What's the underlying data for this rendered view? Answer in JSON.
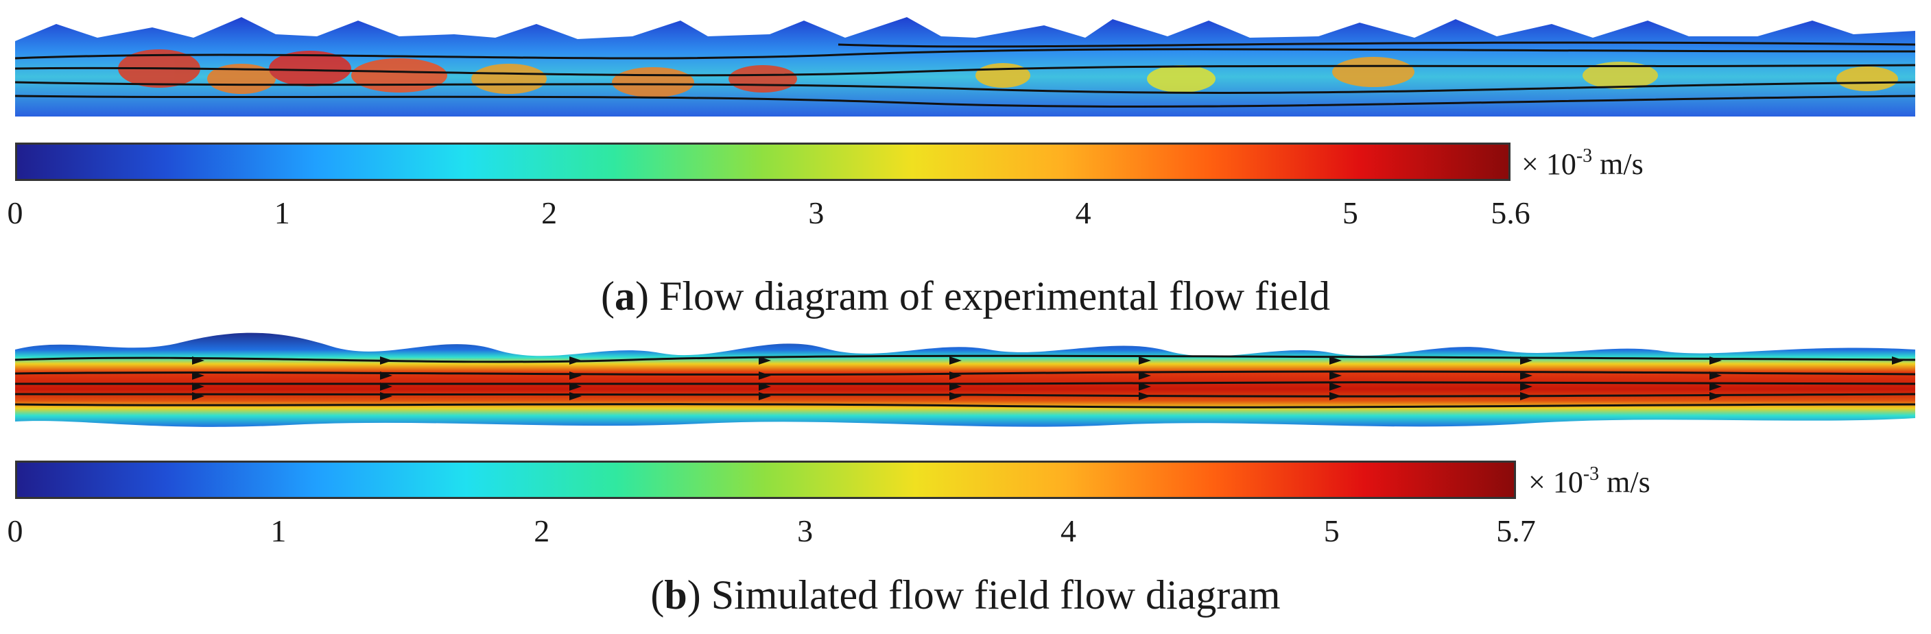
{
  "figure_a": {
    "colorbar": {
      "min_label": "0",
      "max_label": "5.6",
      "ticks": [
        "0",
        "1",
        "2",
        "3",
        "4",
        "5",
        "5.6"
      ],
      "tick_values": [
        0,
        1,
        2,
        3,
        4,
        5,
        5.6
      ],
      "max_value": 5.6
    },
    "unit": {
      "prefix": "× 10",
      "exp": "-3",
      "suffix": " m/s"
    },
    "caption": {
      "letter": "a",
      "text": " Flow diagram of experimental flow field"
    }
  },
  "figure_b": {
    "colorbar": {
      "min_label": "0",
      "max_label": "5.7",
      "ticks": [
        "0",
        "1",
        "2",
        "3",
        "4",
        "5",
        "5.7"
      ],
      "tick_values": [
        0,
        1,
        2,
        3,
        4,
        5,
        5.7
      ],
      "max_value": 5.7
    },
    "unit": {
      "prefix": "× 10",
      "exp": "-3",
      "suffix": " m/s"
    },
    "caption": {
      "letter": "b",
      "text": " Simulated flow field flow diagram"
    }
  },
  "colormap": [
    "#1f1f8f",
    "#1f4fd6",
    "#20a0ff",
    "#20e0f0",
    "#30e8a0",
    "#90e040",
    "#f0e020",
    "#ffb020",
    "#ff6010",
    "#e01010",
    "#8a0a0a"
  ]
}
